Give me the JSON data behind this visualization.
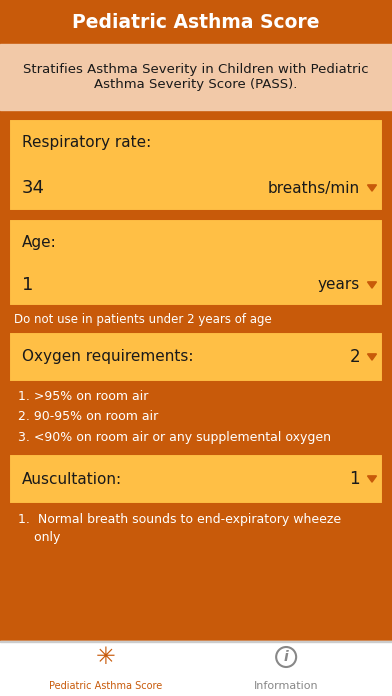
{
  "title": "Pediatric Asthma Score",
  "title_bg": "#C85A0A",
  "title_color": "#FFFFFF",
  "subtitle": "Stratifies Asthma Severity in Children with Pediatric\nAsthma Severity Score (PASS).",
  "subtitle_bg": "#F2C9A8",
  "subtitle_color": "#1A1A1A",
  "main_bg": "#C85A0A",
  "card_bg": "#FFBF45",
  "card_border": "#C85A0A",
  "warning_color": "#FFFFFF",
  "list_text_color": "#FFFFFF",
  "card_text_color": "#1A1A1A",
  "arrow_color": "#C85A0A",
  "sections": [
    {
      "label": "Respiratory rate:",
      "value": "34",
      "unit": "breaths/min"
    },
    {
      "label": "Age:",
      "value": "1",
      "unit": "years",
      "warning": "Do not use in patients under 2 years of age"
    }
  ],
  "list_sections": [
    {
      "label": "Oxygen requirements:",
      "value": "2",
      "items": [
        "1. >95% on room air",
        "2. 90-95% on room air",
        "3. <90% on room air or any supplemental oxygen"
      ]
    },
    {
      "label": "Auscultation:",
      "value": "1",
      "items": [
        "1.  Normal breath sounds to end-expiratory wheeze",
        "    only"
      ]
    }
  ],
  "tab_bar_bg": "#FFFFFF",
  "tab_bar_border": "#CCCCCC",
  "tab1_label": "Pediatric Asthma Score",
  "tab1_color": "#C85A0A",
  "tab2_label": "Information",
  "tab2_color": "#888888",
  "fig_w": 392,
  "fig_h": 696,
  "dpi": 100
}
